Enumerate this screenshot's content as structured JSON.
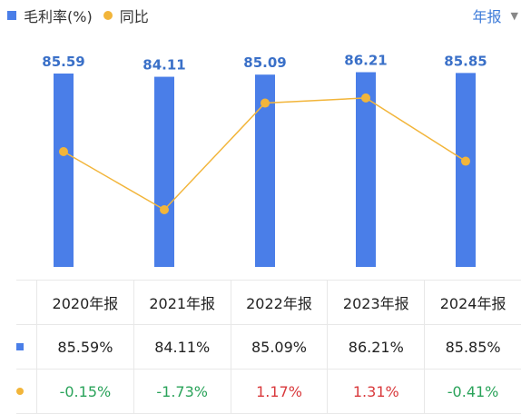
{
  "legend": {
    "series1": "毛利率(%)",
    "series2": "同比"
  },
  "period_selector": {
    "label": "年报"
  },
  "chart_data": {
    "type": "bar",
    "categories": [
      "2020年报",
      "2021年报",
      "2022年报",
      "2023年报",
      "2024年报"
    ],
    "series": [
      {
        "name": "毛利率(%)",
        "type": "bar",
        "values": [
          85.59,
          84.11,
          85.09,
          86.21,
          85.85
        ],
        "labels": [
          "85.59",
          "84.11",
          "85.09",
          "86.21",
          "85.85"
        ]
      },
      {
        "name": "同比",
        "type": "line",
        "values": [
          -0.15,
          -1.73,
          1.17,
          1.31,
          -0.41
        ]
      }
    ],
    "colors": {
      "bar": "#4a7ee8",
      "line": "#f2b53a"
    }
  },
  "table": {
    "headers": [
      "2020年报",
      "2021年报",
      "2022年报",
      "2023年报",
      "2024年报"
    ],
    "row1": [
      "85.59%",
      "84.11%",
      "85.09%",
      "86.21%",
      "85.85%"
    ],
    "row2": [
      "-0.15%",
      "-1.73%",
      "1.17%",
      "1.31%",
      "-0.41%"
    ]
  }
}
